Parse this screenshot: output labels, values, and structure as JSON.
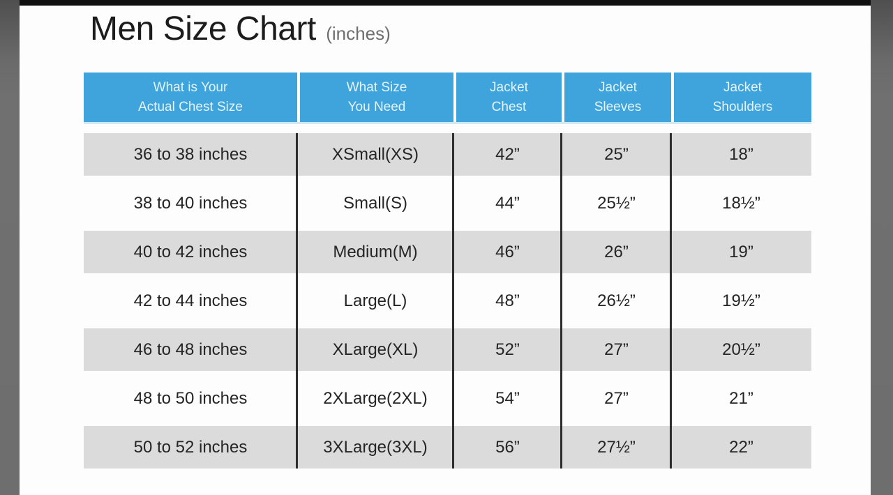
{
  "page": {
    "title": "Men Size Chart",
    "title_suffix": "(inches)"
  },
  "chart_data": {
    "type": "table",
    "title": "Men Size Chart (inches)",
    "columns": [
      "What is Your Actual Chest Size",
      "What Size You Need",
      "Jacket Chest",
      "Jacket Sleeves",
      "Jacket Shoulders"
    ],
    "header_lines": [
      [
        "What is Your",
        "Actual Chest Size"
      ],
      [
        "What Size",
        "You Need"
      ],
      [
        "Jacket",
        "Chest"
      ],
      [
        "Jacket",
        "Sleeves"
      ],
      [
        "Jacket",
        "Shoulders"
      ]
    ],
    "rows": [
      [
        "36 to 38 inches",
        "XSmall(XS)",
        "42”",
        "25”",
        "18”"
      ],
      [
        "38 to 40 inches",
        "Small(S)",
        "44”",
        "25½”",
        "18½”"
      ],
      [
        "40 to 42 inches",
        "Medium(M)",
        "46”",
        "26”",
        "19”"
      ],
      [
        "42 to 44 inches",
        "Large(L)",
        "48”",
        "26½”",
        "19½”"
      ],
      [
        "46 to 48 inches",
        "XLarge(XL)",
        "52”",
        "27”",
        "20½”"
      ],
      [
        "48 to 50 inches",
        "2XLarge(2XL)",
        "54”",
        "27”",
        "21”"
      ],
      [
        "50 to 52 inches",
        "3XLarge(3XL)",
        "56”",
        "27½”",
        "22”"
      ]
    ]
  },
  "colors": {
    "header_bg": "#3fa3dc",
    "header_text": "#e4f4fc",
    "row_alt_bg": "#dbdbdb",
    "body_text": "#252525",
    "divider": "#2d2d2d",
    "frame_gray": "#6e6e6e",
    "top_bar": "#101010"
  }
}
